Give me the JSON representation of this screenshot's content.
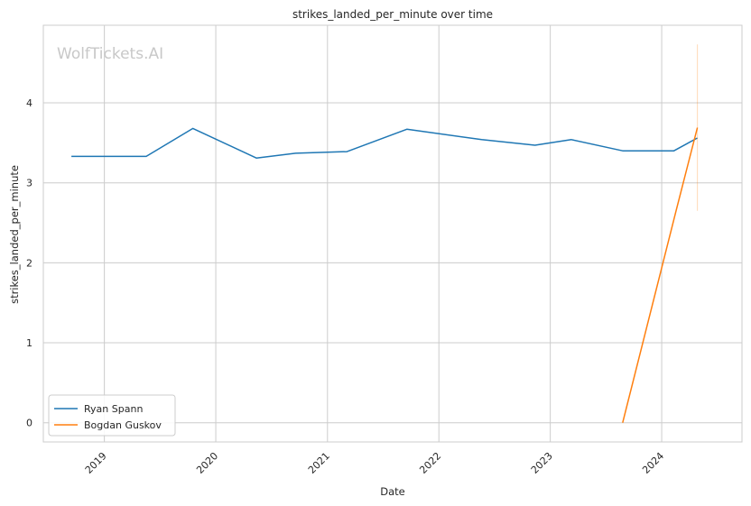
{
  "chart_data": {
    "type": "line",
    "title": "strikes_landed_per_minute over time",
    "xlabel": "Date",
    "ylabel": "strikes_landed_per_minute",
    "watermark": "WolfTickets.AI",
    "xlim": [
      "2018-06-15",
      "2024-09-20"
    ],
    "ylim": [
      -0.24,
      4.97
    ],
    "x_ticks": [
      {
        "date": "2019-01-01",
        "label": "2019"
      },
      {
        "date": "2020-01-01",
        "label": "2020"
      },
      {
        "date": "2021-01-01",
        "label": "2021"
      },
      {
        "date": "2022-01-01",
        "label": "2022"
      },
      {
        "date": "2023-01-01",
        "label": "2023"
      },
      {
        "date": "2024-01-01",
        "label": "2024"
      }
    ],
    "y_ticks": [
      {
        "value": 0,
        "label": "0"
      },
      {
        "value": 1,
        "label": "1"
      },
      {
        "value": 2,
        "label": "2"
      },
      {
        "value": 3,
        "label": "3"
      },
      {
        "value": 4,
        "label": "4"
      }
    ],
    "grid": true,
    "legend_position": "bottom-left",
    "series": [
      {
        "name": "Ryan Spann",
        "color": "#1f77b4",
        "points": [
          {
            "x": "2018-09-15",
            "y": 3.33
          },
          {
            "x": "2019-05-18",
            "y": 3.33
          },
          {
            "x": "2019-10-18",
            "y": 3.68
          },
          {
            "x": "2020-05-13",
            "y": 3.31
          },
          {
            "x": "2020-09-19",
            "y": 3.37
          },
          {
            "x": "2021-03-06",
            "y": 3.39
          },
          {
            "x": "2021-09-18",
            "y": 3.67
          },
          {
            "x": "2022-05-21",
            "y": 3.54
          },
          {
            "x": "2022-11-12",
            "y": 3.47
          },
          {
            "x": "2023-03-11",
            "y": 3.54
          },
          {
            "x": "2023-08-26",
            "y": 3.4
          },
          {
            "x": "2024-02-10",
            "y": 3.4
          },
          {
            "x": "2024-04-27",
            "y": 3.56
          }
        ]
      },
      {
        "name": "Bogdan Guskov",
        "color": "#ff7f0e",
        "points": [
          {
            "x": "2023-08-26",
            "y": 0.0
          },
          {
            "x": "2024-02-17",
            "y": 2.65
          },
          {
            "x": "2024-04-27",
            "y": 3.69
          }
        ],
        "error_bar": {
          "x": "2024-04-27",
          "low": 2.65,
          "high": 4.73
        }
      }
    ]
  }
}
